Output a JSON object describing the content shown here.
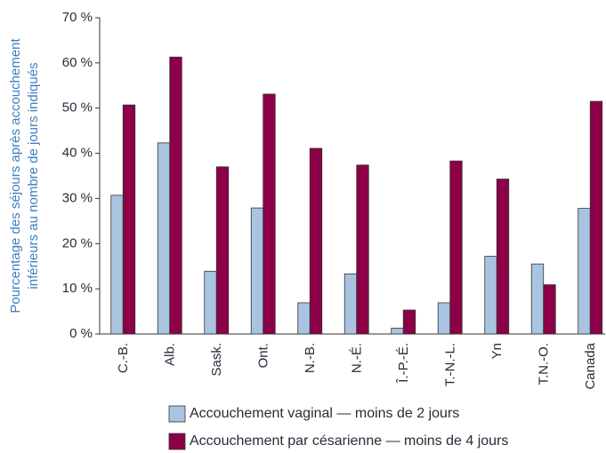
{
  "chart_data": {
    "type": "bar",
    "y_label": [
      "Pourcentage des séjours après accouchement",
      "inférieurs au nombre de jours indiqués"
    ],
    "categories": [
      "C.-B.",
      "Alb.",
      "Sask.",
      "Ont.",
      "N.-B.",
      "N.-É.",
      "Î.-P.-É.",
      "T.-N.-L.",
      "Yn",
      "T.N.-O.",
      "Canada"
    ],
    "series": [
      {
        "name": "Accouchement vaginal — moins de 2 jours",
        "color": "#a8c4e0",
        "values": [
          30.7,
          42.3,
          13.9,
          27.9,
          6.9,
          13.3,
          1.3,
          6.9,
          17.2,
          15.5,
          27.8
        ]
      },
      {
        "name": "Accouchement par césarienne — moins de 4 jours",
        "color": "#8c0048",
        "values": [
          50.7,
          61.3,
          37.0,
          53.1,
          41.1,
          37.4,
          5.3,
          38.3,
          34.3,
          10.9,
          51.5
        ]
      }
    ],
    "ylim": [
      0,
      70
    ],
    "yticks": [
      {
        "value": 0,
        "label": "0 %"
      },
      {
        "value": 10,
        "label": "10 %"
      },
      {
        "value": 20,
        "label": "20 %"
      },
      {
        "value": 30,
        "label": "30 %"
      },
      {
        "value": 40,
        "label": "40 %"
      },
      {
        "value": 50,
        "label": "50 %"
      },
      {
        "value": 60,
        "label": "60 %"
      },
      {
        "value": 70,
        "label": "70 %"
      }
    ]
  }
}
